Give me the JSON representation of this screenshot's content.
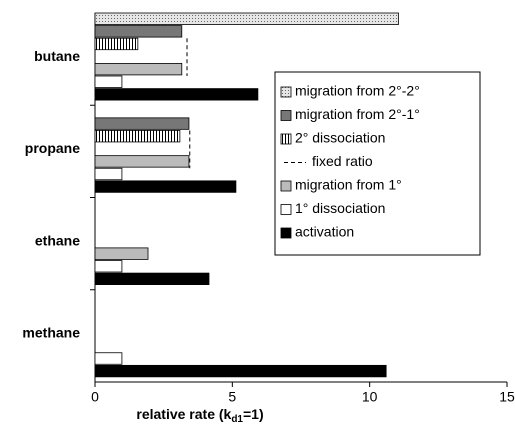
{
  "chart_data": {
    "type": "hbar",
    "categories": [
      "butane",
      "propane",
      "ethane",
      "methane"
    ],
    "xlabel": [
      "relative rate (k",
      "d1",
      "=1)"
    ],
    "xlim": [
      0,
      15
    ],
    "xticks": [
      0,
      5,
      10,
      15
    ],
    "series": [
      {
        "name": "migration from 2°-2°",
        "color": "#d0d0d0",
        "pattern": "dots",
        "values": [
          11.05,
          null,
          null,
          null
        ]
      },
      {
        "name": "migration from 2°-1°",
        "color": "#777777",
        "values": [
          3.16,
          3.42,
          null,
          null
        ]
      },
      {
        "name": "2° dissociation",
        "color": "#ffffff",
        "pattern": "stripes",
        "values": [
          1.56,
          3.09,
          null,
          null
        ]
      },
      {
        "name": "fixed ratio",
        "color": "#000000",
        "style": "dashed-line",
        "values": [
          3.35,
          3.45,
          null,
          null
        ]
      },
      {
        "name": "migration from 1°",
        "color": "#bbbbbb",
        "values": [
          3.16,
          3.42,
          1.93,
          null
        ]
      },
      {
        "name": "1° dissociation",
        "color": "#ffffff",
        "values": [
          0.98,
          0.98,
          0.98,
          0.98
        ]
      },
      {
        "name": "activation",
        "color": "#000000",
        "values": [
          5.93,
          5.13,
          4.15,
          10.6
        ]
      }
    ]
  }
}
